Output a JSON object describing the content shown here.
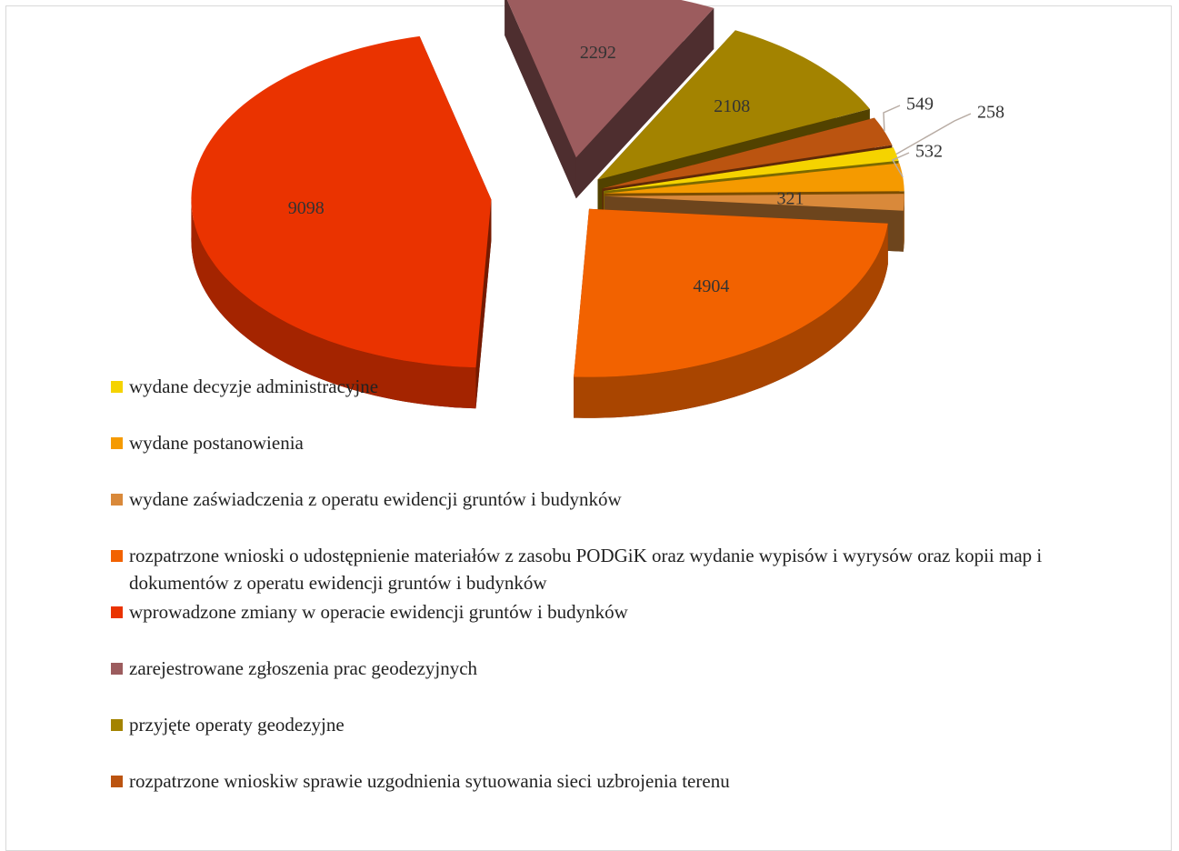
{
  "chart_data": {
    "type": "pie",
    "categories": [
      "wydane decyzje administracyjne",
      "wydane postanowienia",
      "wydane zaświadczenia z operatu ewidencji gruntów i budynków",
      "rozpatrzone wnioski o udostępnienie materiałów z zasobu PODGiK oraz wydanie wypisów i wyrysów oraz kopii map i dokumentów z operatu ewidencji gruntów i budynków",
      "wprowadzone zmiany w operacie ewidencji gruntów i budynków",
      "zarejestrowane zgłoszenia prac  geodezyjnych",
      "przyjęte operaty geodezyjne",
      "rozpatrzone wnioskiw sprawie uzgodnienia sytuowania sieci uzbrojenia terenu"
    ],
    "values": [
      258,
      532,
      321,
      4904,
      9098,
      2292,
      2108,
      549
    ],
    "colors": [
      "#f5d300",
      "#f59a00",
      "#d9893a",
      "#f26200",
      "#ea3300",
      "#9c5c5e",
      "#a38300",
      "#bb5410"
    ],
    "legend": "bottom-left"
  }
}
